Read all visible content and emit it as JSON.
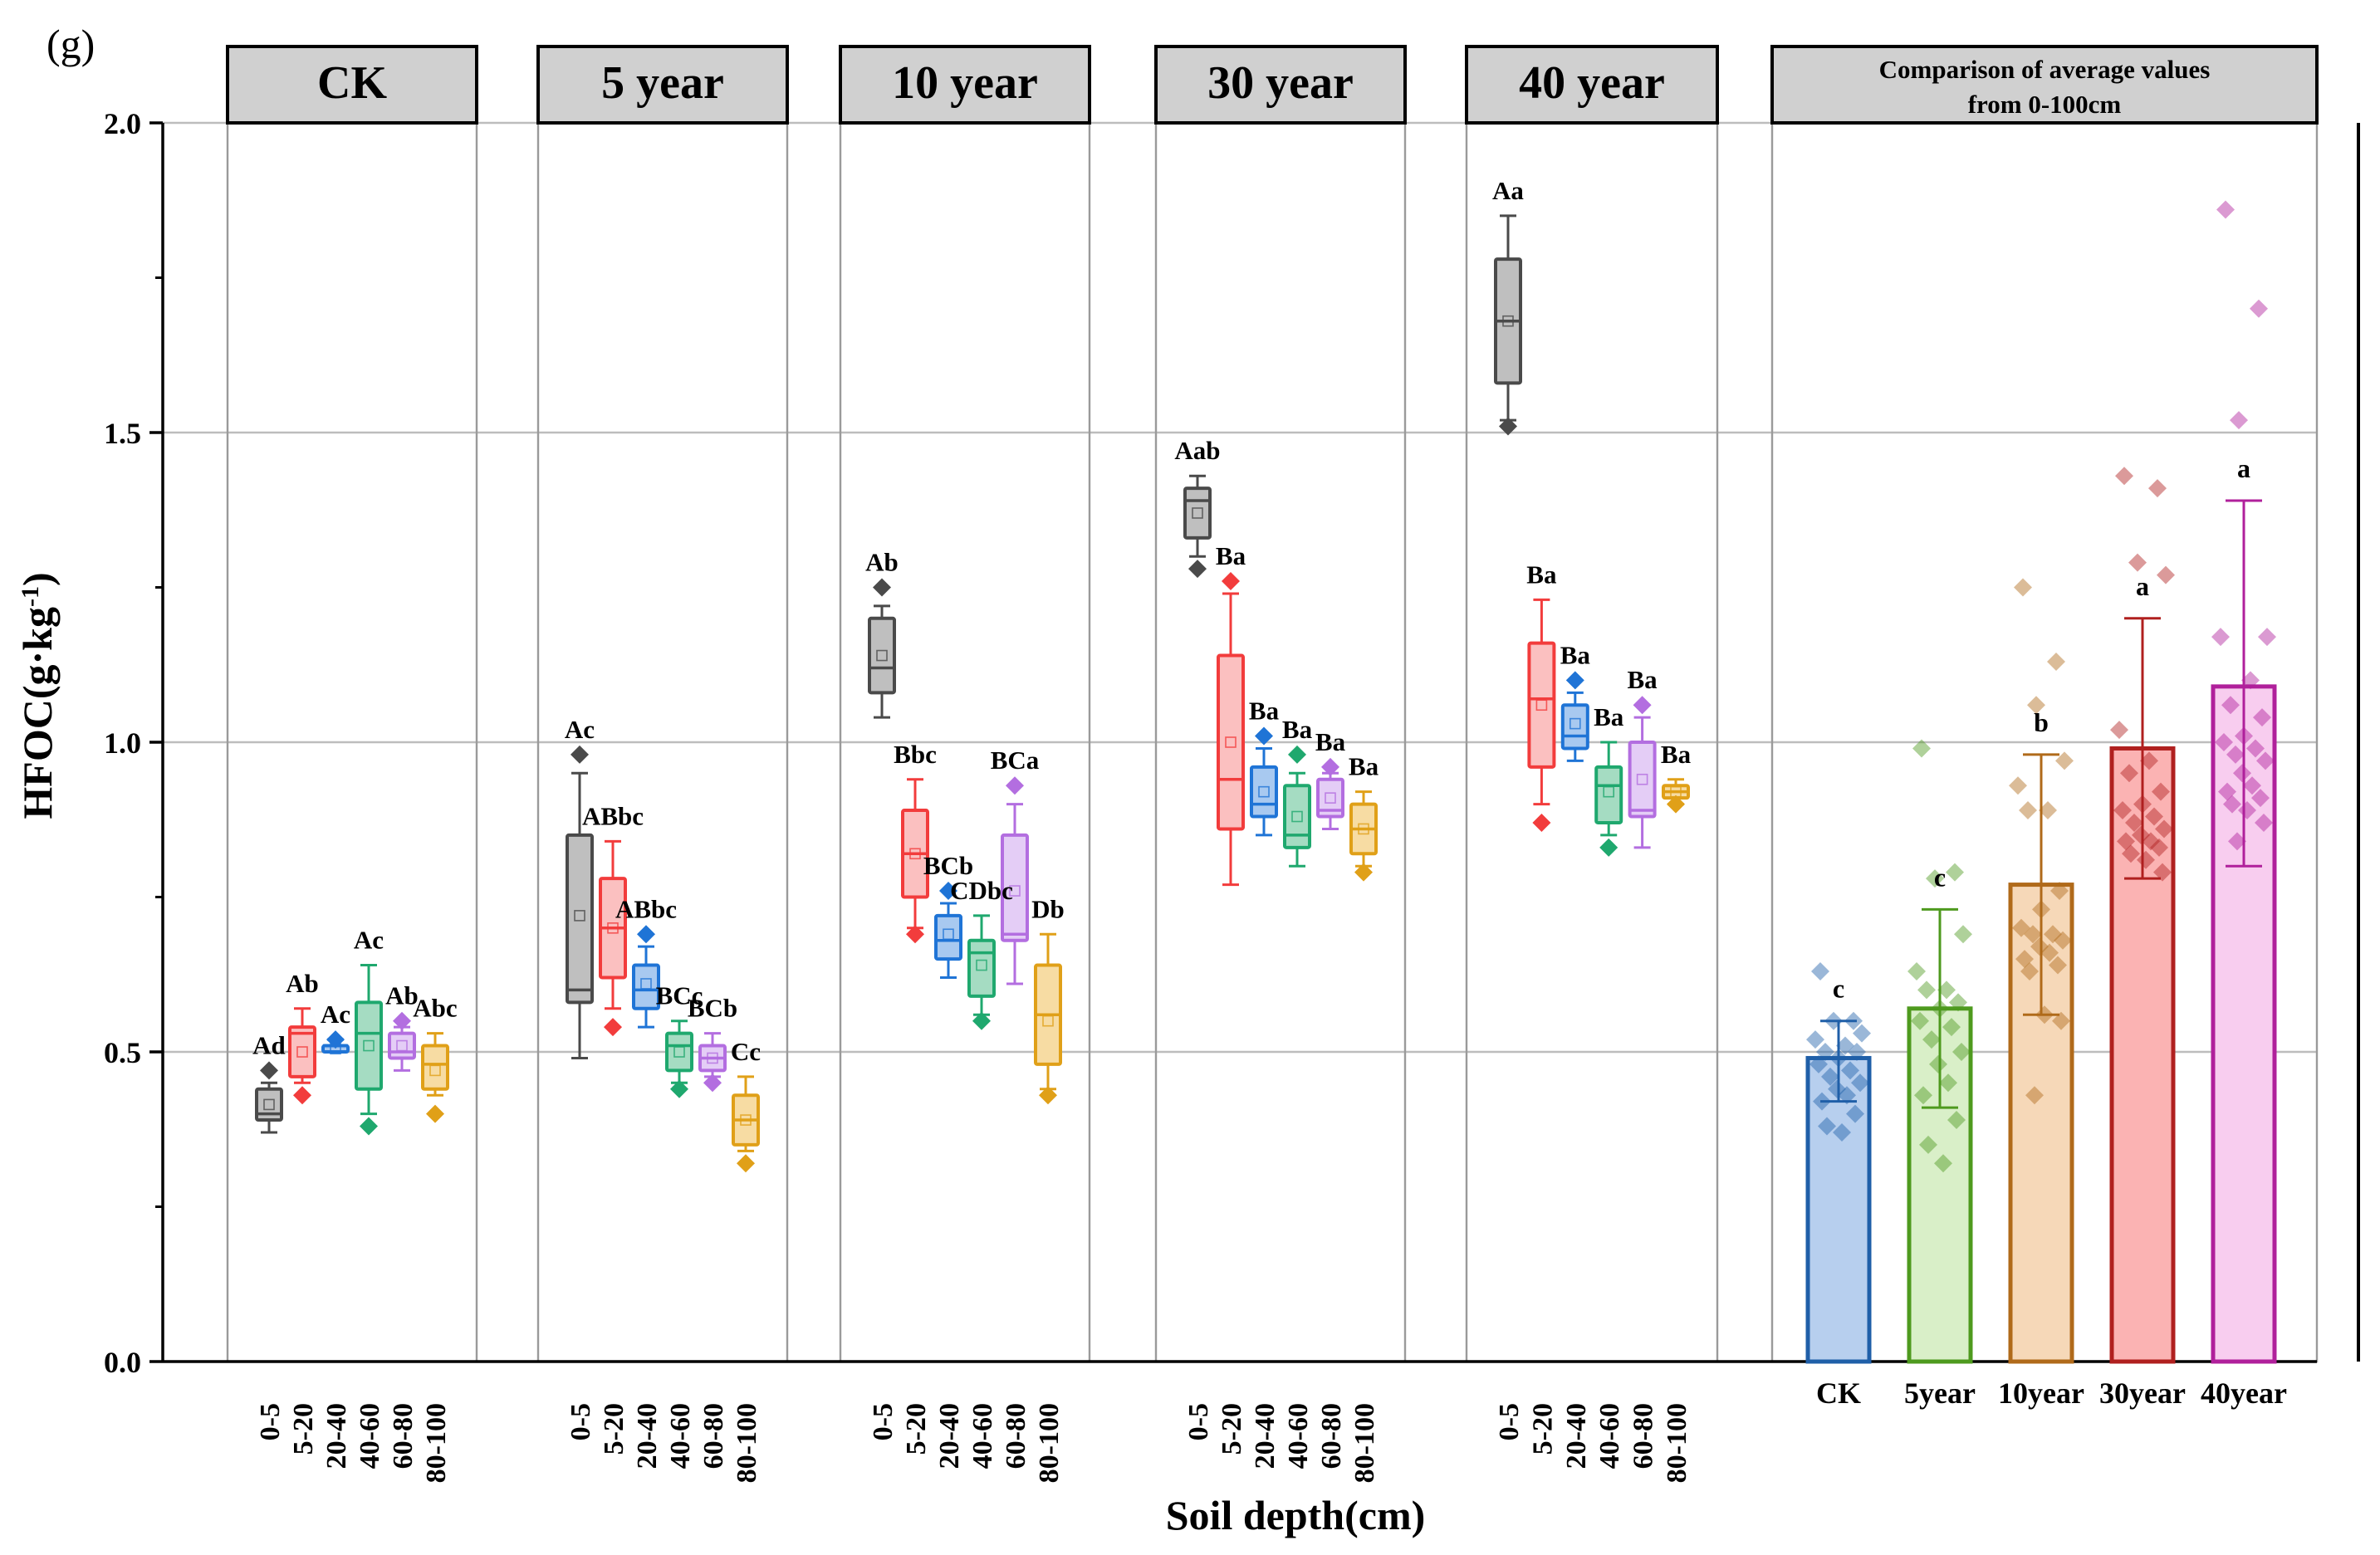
{
  "panel_label": "(g)",
  "chart_data": {
    "type": "box+bar",
    "ylabel": "HFOC(g·kg",
    "ylabel_sup": "-1",
    "ylabel_tail": ")",
    "xlabel": "Soil depth(cm)",
    "ylim": [
      0,
      2.0
    ],
    "yticks": [
      0.0,
      0.5,
      1.0,
      1.5,
      2.0
    ],
    "ytick_labels": [
      "0.0",
      "0.5",
      "1.0",
      "1.5",
      "2.0"
    ],
    "gridlines": [
      0.5,
      1.0,
      1.5,
      2.0
    ],
    "depths": [
      "0-5",
      "5-20",
      "20-40",
      "40-60",
      "60-80",
      "80-100"
    ],
    "depth_colors": [
      "#4a4a4a",
      "#f23c3c",
      "#1f74d6",
      "#1fa86e",
      "#b36ee0",
      "#e0a018"
    ],
    "depth_fills": [
      "#bfbfbf",
      "#fbc0c0",
      "#a8c9f0",
      "#a5dcc2",
      "#e4cdf6",
      "#f7dca3"
    ],
    "box_panels": [
      {
        "title": "CK",
        "boxes": [
          {
            "depth": "0-5",
            "q1": 0.39,
            "median": 0.4,
            "q3": 0.44,
            "mean": 0.415,
            "whisker_low": 0.37,
            "whisker_high": 0.45,
            "outlier": 0.47,
            "label": "Ad"
          },
          {
            "depth": "5-20",
            "q1": 0.46,
            "median": 0.53,
            "q3": 0.54,
            "mean": 0.5,
            "whisker_low": 0.45,
            "whisker_high": 0.57,
            "outlier": 0.43,
            "label": "Ab"
          },
          {
            "depth": "20-40",
            "q1": 0.5,
            "median": 0.51,
            "q3": 0.51,
            "mean": 0.505,
            "whisker_low": 0.5,
            "whisker_high": 0.52,
            "outlier": 0.52,
            "label": "Ac"
          },
          {
            "depth": "40-60",
            "q1": 0.44,
            "median": 0.53,
            "q3": 0.58,
            "mean": 0.51,
            "whisker_low": 0.4,
            "whisker_high": 0.64,
            "outlier": 0.38,
            "label": "Ac"
          },
          {
            "depth": "60-80",
            "q1": 0.49,
            "median": 0.5,
            "q3": 0.53,
            "mean": 0.51,
            "whisker_low": 0.47,
            "whisker_high": 0.54,
            "outlier": 0.55,
            "label": "Ab"
          },
          {
            "depth": "80-100",
            "q1": 0.44,
            "median": 0.48,
            "q3": 0.51,
            "mean": 0.47,
            "whisker_low": 0.43,
            "whisker_high": 0.53,
            "outlier": 0.4,
            "label": "Abc"
          }
        ]
      },
      {
        "title": "5 year",
        "boxes": [
          {
            "depth": "0-5",
            "q1": 0.58,
            "median": 0.6,
            "q3": 0.85,
            "mean": 0.72,
            "whisker_low": 0.49,
            "whisker_high": 0.95,
            "outlier": 0.98,
            "label": "Ac"
          },
          {
            "depth": "5-20",
            "q1": 0.62,
            "median": 0.7,
            "q3": 0.78,
            "mean": 0.7,
            "whisker_low": 0.57,
            "whisker_high": 0.84,
            "outlier": 0.54,
            "label": "ABbc"
          },
          {
            "depth": "20-40",
            "q1": 0.57,
            "median": 0.6,
            "q3": 0.64,
            "mean": 0.61,
            "whisker_low": 0.54,
            "whisker_high": 0.67,
            "outlier": 0.69,
            "label": "ABbc"
          },
          {
            "depth": "40-60",
            "q1": 0.47,
            "median": 0.51,
            "q3": 0.53,
            "mean": 0.5,
            "whisker_low": 0.45,
            "whisker_high": 0.55,
            "outlier": 0.44,
            "label": "BCc"
          },
          {
            "depth": "60-80",
            "q1": 0.47,
            "median": 0.49,
            "q3": 0.51,
            "mean": 0.49,
            "whisker_low": 0.46,
            "whisker_high": 0.53,
            "outlier": 0.45,
            "label": "BCb"
          },
          {
            "depth": "80-100",
            "q1": 0.35,
            "median": 0.39,
            "q3": 0.43,
            "mean": 0.39,
            "whisker_low": 0.34,
            "whisker_high": 0.46,
            "outlier": 0.32,
            "label": "Cc"
          }
        ]
      },
      {
        "title": "10 year",
        "boxes": [
          {
            "depth": "0-5",
            "q1": 1.08,
            "median": 1.12,
            "q3": 1.2,
            "mean": 1.14,
            "whisker_low": 1.04,
            "whisker_high": 1.22,
            "outlier": 1.25,
            "label": "Ab"
          },
          {
            "depth": "5-20",
            "q1": 0.75,
            "median": 0.82,
            "q3": 0.89,
            "mean": 0.82,
            "whisker_low": 0.7,
            "whisker_high": 0.94,
            "outlier": 0.69,
            "label": "Bbc"
          },
          {
            "depth": "20-40",
            "q1": 0.65,
            "median": 0.68,
            "q3": 0.72,
            "mean": 0.69,
            "whisker_low": 0.62,
            "whisker_high": 0.74,
            "outlier": 0.76,
            "label": "BCb"
          },
          {
            "depth": "40-60",
            "q1": 0.59,
            "median": 0.66,
            "q3": 0.68,
            "mean": 0.64,
            "whisker_low": 0.56,
            "whisker_high": 0.72,
            "outlier": 0.55,
            "label": "CDbc"
          },
          {
            "depth": "60-80",
            "q1": 0.68,
            "median": 0.69,
            "q3": 0.85,
            "mean": 0.76,
            "whisker_low": 0.61,
            "whisker_high": 0.9,
            "outlier": 0.93,
            "label": "BCa"
          },
          {
            "depth": "80-100",
            "q1": 0.48,
            "median": 0.56,
            "q3": 0.64,
            "mean": 0.55,
            "whisker_low": 0.44,
            "whisker_high": 0.69,
            "outlier": 0.43,
            "label": "Db"
          }
        ]
      },
      {
        "title": "30 year",
        "boxes": [
          {
            "depth": "0-5",
            "q1": 1.33,
            "median": 1.39,
            "q3": 1.41,
            "mean": 1.37,
            "whisker_low": 1.3,
            "whisker_high": 1.43,
            "outlier": 1.28,
            "label": "Aab"
          },
          {
            "depth": "5-20",
            "q1": 0.86,
            "median": 0.94,
            "q3": 1.14,
            "mean": 1.0,
            "whisker_low": 0.77,
            "whisker_high": 1.24,
            "outlier": 1.26,
            "label": "Ba"
          },
          {
            "depth": "20-40",
            "q1": 0.88,
            "median": 0.9,
            "q3": 0.96,
            "mean": 0.92,
            "whisker_low": 0.85,
            "whisker_high": 0.99,
            "outlier": 1.01,
            "label": "Ba"
          },
          {
            "depth": "40-60",
            "q1": 0.83,
            "median": 0.85,
            "q3": 0.93,
            "mean": 0.88,
            "whisker_low": 0.8,
            "whisker_high": 0.95,
            "outlier": 0.98,
            "label": "Ba"
          },
          {
            "depth": "60-80",
            "q1": 0.88,
            "median": 0.89,
            "q3": 0.94,
            "mean": 0.91,
            "whisker_low": 0.86,
            "whisker_high": 0.95,
            "outlier": 0.96,
            "label": "Ba"
          },
          {
            "depth": "80-100",
            "q1": 0.82,
            "median": 0.86,
            "q3": 0.9,
            "mean": 0.86,
            "whisker_low": 0.8,
            "whisker_high": 0.92,
            "outlier": 0.79,
            "label": "Ba"
          }
        ]
      },
      {
        "title": "40 year",
        "boxes": [
          {
            "depth": "0-5",
            "q1": 1.58,
            "median": 1.68,
            "q3": 1.78,
            "mean": 1.68,
            "whisker_low": 1.52,
            "whisker_high": 1.85,
            "outlier": 1.51,
            "label": "Aa"
          },
          {
            "depth": "5-20",
            "q1": 0.96,
            "median": 1.07,
            "q3": 1.16,
            "mean": 1.06,
            "whisker_low": 0.9,
            "whisker_high": 1.23,
            "outlier": 0.87,
            "label": "Ba"
          },
          {
            "depth": "20-40",
            "q1": 0.99,
            "median": 1.01,
            "q3": 1.06,
            "mean": 1.03,
            "whisker_low": 0.97,
            "whisker_high": 1.08,
            "outlier": 1.1,
            "label": "Ba"
          },
          {
            "depth": "40-60",
            "q1": 0.87,
            "median": 0.93,
            "q3": 0.96,
            "mean": 0.92,
            "whisker_low": 0.85,
            "whisker_high": 1.0,
            "outlier": 0.83,
            "label": "Ba"
          },
          {
            "depth": "60-80",
            "q1": 0.88,
            "median": 0.89,
            "q3": 1.0,
            "mean": 0.94,
            "whisker_low": 0.83,
            "whisker_high": 1.04,
            "outlier": 1.06,
            "label": "Ba"
          },
          {
            "depth": "80-100",
            "q1": 0.91,
            "median": 0.92,
            "q3": 0.93,
            "mean": 0.92,
            "whisker_low": 0.9,
            "whisker_high": 0.94,
            "outlier": 0.9,
            "label": "Ba"
          }
        ]
      }
    ],
    "bar_panel": {
      "title_line1": "Comparison of average values",
      "title_line2": "from 0-100cm",
      "categories": [
        "CK",
        "5year",
        "10year",
        "30year",
        "40year"
      ],
      "values": [
        0.49,
        0.57,
        0.77,
        0.99,
        1.09
      ],
      "error_low": [
        0.42,
        0.41,
        0.56,
        0.78,
        0.8
      ],
      "error_high": [
        0.55,
        0.73,
        0.98,
        1.2,
        1.39
      ],
      "letters": [
        "c",
        "c",
        "b",
        "a",
        "a"
      ],
      "edge_colors": [
        "#1f5fa8",
        "#4e9a1e",
        "#b06a1a",
        "#b0201f",
        "#b0209b"
      ],
      "fill_colors": [
        "#b7cfee",
        "#d9efc8",
        "#f6d8b8",
        "#fbb3b3",
        "#f8cdef"
      ],
      "points": [
        [
          0.63,
          0.55,
          0.55,
          0.53,
          0.52,
          0.51,
          0.5,
          0.5,
          0.49,
          0.48,
          0.47,
          0.46,
          0.45,
          0.44,
          0.43,
          0.42,
          0.4,
          0.38,
          0.37
        ],
        [
          0.99,
          0.79,
          0.78,
          0.69,
          0.63,
          0.6,
          0.6,
          0.58,
          0.57,
          0.55,
          0.54,
          0.52,
          0.5,
          0.48,
          0.45,
          0.43,
          0.39,
          0.35,
          0.32
        ],
        [
          1.25,
          1.13,
          1.06,
          0.97,
          0.93,
          0.89,
          0.89,
          0.76,
          0.73,
          0.7,
          0.69,
          0.69,
          0.68,
          0.67,
          0.66,
          0.65,
          0.64,
          0.63,
          0.56,
          0.55,
          0.43
        ],
        [
          1.43,
          1.41,
          1.29,
          1.27,
          1.02,
          0.97,
          0.95,
          0.92,
          0.9,
          0.89,
          0.88,
          0.87,
          0.86,
          0.85,
          0.84,
          0.84,
          0.83,
          0.82,
          0.81,
          0.79
        ],
        [
          1.86,
          1.7,
          1.52,
          1.17,
          1.17,
          1.1,
          1.06,
          1.04,
          1.01,
          1.0,
          0.99,
          0.98,
          0.97,
          0.95,
          0.93,
          0.92,
          0.91,
          0.9,
          0.89,
          0.87,
          0.84
        ]
      ]
    }
  }
}
